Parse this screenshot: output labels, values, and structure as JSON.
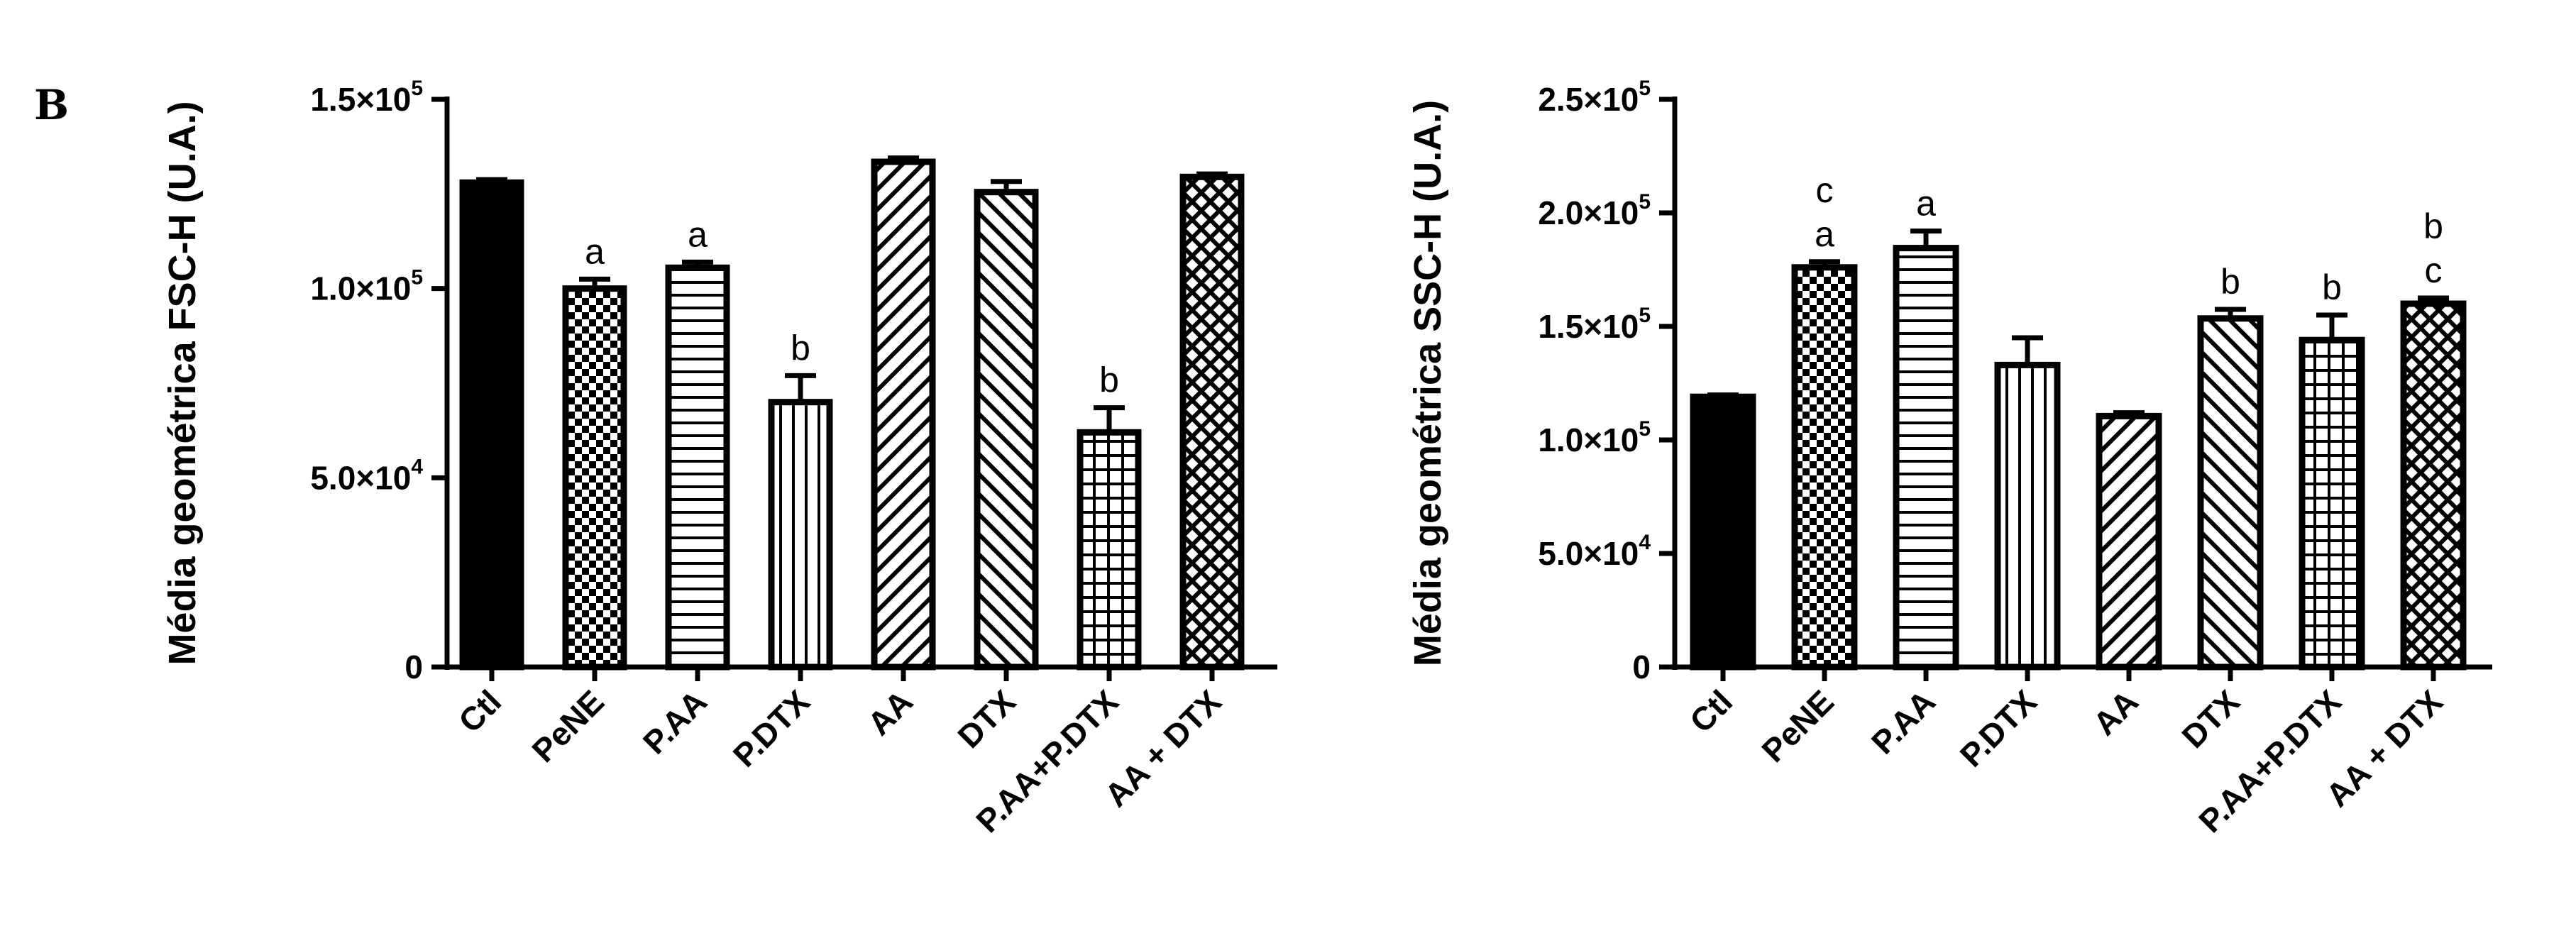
{
  "panel_label": "B",
  "chart_data": [
    {
      "type": "bar",
      "ylabel": "Média geométrica FSC-H (U.A.)",
      "ylim": [
        0,
        150000
      ],
      "yticks": [
        {
          "value": 0,
          "mantissa": "0",
          "exponent": ""
        },
        {
          "value": 50000,
          "mantissa": "5.0×10",
          "exponent": "4"
        },
        {
          "value": 100000,
          "mantissa": "1.0×10",
          "exponent": "5"
        },
        {
          "value": 150000,
          "mantissa": "1.5×10",
          "exponent": "5"
        }
      ],
      "categories": [
        "Ctl",
        "PeNE",
        "P.AA",
        "P.DTX",
        "AA",
        "DTX",
        "P.AA+P.DTX",
        "AA + DTX"
      ],
      "values": [
        128000,
        100000,
        105500,
        70000,
        133500,
        125500,
        62000,
        129500
      ],
      "errors": [
        800,
        2500,
        1500,
        7000,
        1000,
        2800,
        6500,
        800
      ],
      "patterns": [
        "solid",
        "checker",
        "hlines",
        "vlines",
        "diag-up",
        "diag-down",
        "grid",
        "diag-cross"
      ],
      "annotations": [
        [],
        [
          "a"
        ],
        [
          "a"
        ],
        [
          "b"
        ],
        [],
        [],
        [
          "b"
        ],
        []
      ]
    },
    {
      "type": "bar",
      "ylabel": "Média geométrica SSC-H (U.A.)",
      "ylim": [
        0,
        250000
      ],
      "yticks": [
        {
          "value": 0,
          "mantissa": "0",
          "exponent": ""
        },
        {
          "value": 50000,
          "mantissa": "5.0×10",
          "exponent": "4"
        },
        {
          "value": 100000,
          "mantissa": "1.0×10",
          "exponent": "5"
        },
        {
          "value": 150000,
          "mantissa": "1.5×10",
          "exponent": "5"
        },
        {
          "value": 200000,
          "mantissa": "2.0×10",
          "exponent": "5"
        },
        {
          "value": 250000,
          "mantissa": "2.5×10",
          "exponent": "5"
        }
      ],
      "categories": [
        "Ctl",
        "PeNE",
        "P.AA",
        "P.DTX",
        "AA",
        "DTX",
        "P.AA+P.DTX",
        "AA + DTX"
      ],
      "values": [
        119000,
        176000,
        184500,
        133000,
        110500,
        153500,
        144000,
        160000
      ],
      "errors": [
        800,
        2500,
        7500,
        12000,
        1500,
        4000,
        11000,
        2500
      ],
      "patterns": [
        "solid",
        "checker",
        "hlines",
        "vlines",
        "diag-up",
        "diag-down",
        "grid",
        "diag-cross"
      ],
      "annotations": [
        [],
        [
          "a",
          "c"
        ],
        [
          "a"
        ],
        [],
        [],
        [
          "b"
        ],
        [
          "b"
        ],
        [
          "c",
          "b"
        ]
      ]
    }
  ]
}
